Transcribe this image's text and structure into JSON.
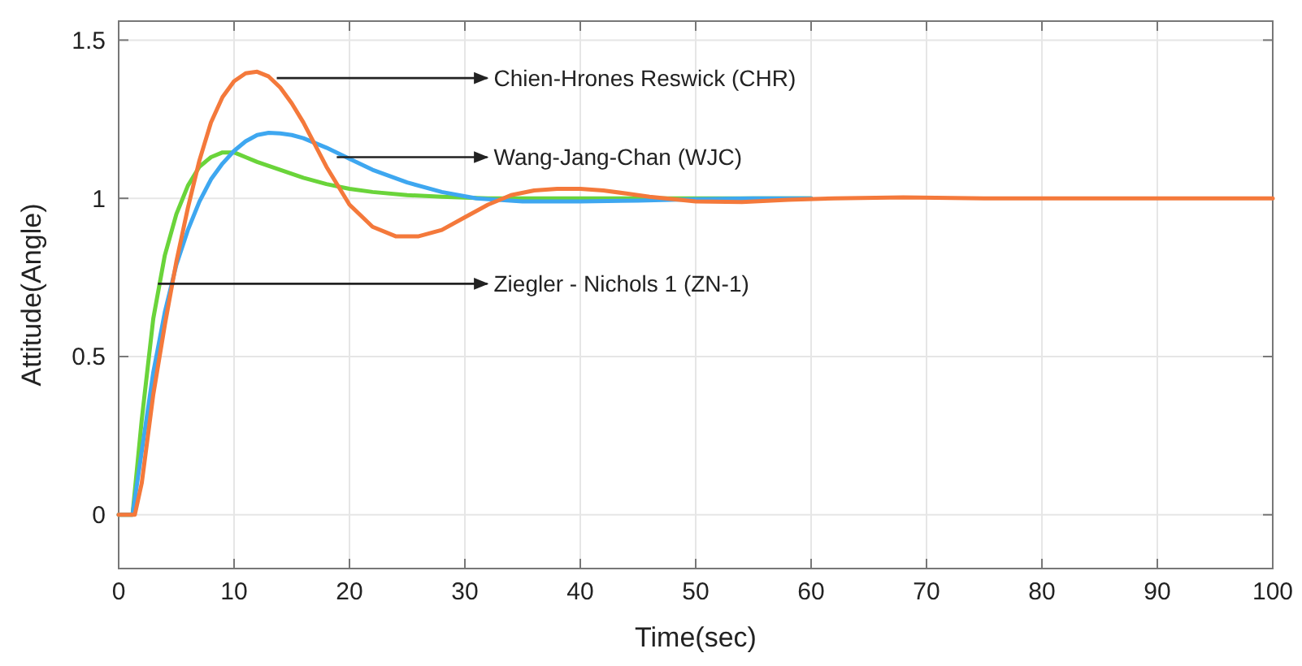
{
  "chart_data": {
    "type": "line",
    "xlabel": "Time(sec)",
    "ylabel": "Attitude(Angle)",
    "xlim": [
      0,
      100
    ],
    "ylim": [
      -0.17,
      1.56
    ],
    "xticks": [
      0,
      10,
      20,
      30,
      40,
      50,
      60,
      70,
      80,
      90,
      100
    ],
    "yticks": [
      0,
      0.5,
      1,
      1.5
    ],
    "grid": true,
    "marker": "none",
    "line_style": "solid",
    "series": [
      {
        "color": "#6ad43a",
        "x": [
          0,
          1.2,
          2,
          3,
          4,
          5,
          6,
          7,
          8,
          9,
          10,
          11,
          12,
          14,
          16,
          18,
          20,
          22,
          25,
          28,
          32,
          36,
          40,
          50,
          60
        ],
        "values": [
          0,
          0,
          0.3,
          0.62,
          0.82,
          0.95,
          1.04,
          1.1,
          1.13,
          1.145,
          1.145,
          1.13,
          1.115,
          1.09,
          1.065,
          1.045,
          1.03,
          1.02,
          1.01,
          1.005,
          1.0,
          1.0,
          1.0,
          1.0,
          1
        ]
      },
      {
        "color": "#3ea7f0",
        "x": [
          0,
          1.2,
          2,
          3,
          4,
          5,
          6,
          7,
          8,
          9,
          10,
          11,
          12,
          13,
          14,
          15,
          16,
          18,
          20,
          22,
          25,
          28,
          31,
          35,
          40,
          45,
          50,
          55,
          60
        ],
        "values": [
          0,
          0,
          0.2,
          0.45,
          0.64,
          0.79,
          0.9,
          0.99,
          1.06,
          1.11,
          1.15,
          1.18,
          1.2,
          1.207,
          1.205,
          1.2,
          1.19,
          1.16,
          1.125,
          1.09,
          1.05,
          1.02,
          1.0,
          0.99,
          0.99,
          0.993,
          0.997,
          1.0,
          1.0
        ]
      },
      {
        "color": "#f4793b",
        "x": [
          0,
          1.4,
          2,
          3,
          4,
          5,
          6,
          7,
          8,
          9,
          10,
          11,
          12,
          13,
          14,
          15,
          16,
          17,
          18,
          20,
          22,
          24,
          26,
          28,
          30,
          32,
          34,
          36,
          38,
          40,
          42,
          44,
          46,
          50,
          54,
          58,
          62,
          68,
          75,
          80,
          100
        ],
        "values": [
          0,
          0,
          0.1,
          0.38,
          0.6,
          0.8,
          0.97,
          1.12,
          1.24,
          1.32,
          1.37,
          1.395,
          1.4,
          1.385,
          1.35,
          1.3,
          1.24,
          1.17,
          1.1,
          0.98,
          0.91,
          0.88,
          0.88,
          0.9,
          0.94,
          0.98,
          1.01,
          1.025,
          1.03,
          1.03,
          1.025,
          1.015,
          1.005,
          0.99,
          0.988,
          0.995,
          1.0,
          1.003,
          1.0,
          1,
          1
        ]
      }
    ],
    "annotations": [
      {
        "text": "Chien-Hrones Reswick (CHR)",
        "x": 13.7,
        "y": 1.38
      },
      {
        "text": "Wang-Jang-Chan (WJC)",
        "x": 18.9,
        "y": 1.13
      },
      {
        "text": "Ziegler - Nichols 1 (ZN-1)",
        "x": 3.4,
        "y": 0.73
      }
    ]
  }
}
